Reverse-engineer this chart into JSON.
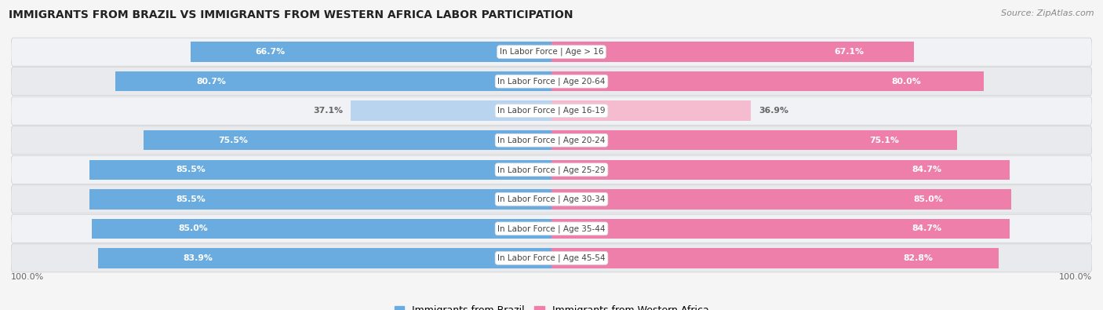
{
  "title": "IMMIGRANTS FROM BRAZIL VS IMMIGRANTS FROM WESTERN AFRICA LABOR PARTICIPATION",
  "source": "Source: ZipAtlas.com",
  "categories": [
    "In Labor Force | Age > 16",
    "In Labor Force | Age 20-64",
    "In Labor Force | Age 16-19",
    "In Labor Force | Age 20-24",
    "In Labor Force | Age 25-29",
    "In Labor Force | Age 30-34",
    "In Labor Force | Age 35-44",
    "In Labor Force | Age 45-54"
  ],
  "brazil_values": [
    66.7,
    80.7,
    37.1,
    75.5,
    85.5,
    85.5,
    85.0,
    83.9
  ],
  "africa_values": [
    67.1,
    80.0,
    36.9,
    75.1,
    84.7,
    85.0,
    84.7,
    82.8
  ],
  "brazil_color": "#6aace0",
  "africa_color": "#ee7faa",
  "brazil_light_color": "#b8d4ee",
  "africa_light_color": "#f5bcd0",
  "low_threshold": 50.0,
  "legend_brazil": "Immigrants from Brazil",
  "legend_africa": "Immigrants from Western Africa",
  "max_val": 100.0,
  "center_label_color": "#444444",
  "center_label_bg": "#ffffff",
  "row_colors": [
    "#f0f2f5",
    "#e8eaed"
  ],
  "title_color": "#222222",
  "source_color": "#888888",
  "pct_label_color_high": "#ffffff",
  "pct_label_color_low": "#666666",
  "footer_pct_color": "#666666"
}
